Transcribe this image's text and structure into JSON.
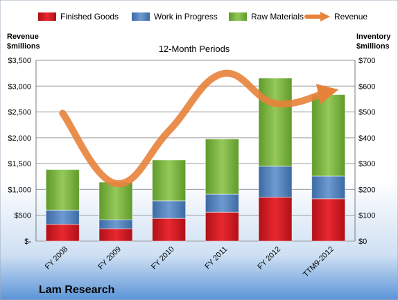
{
  "chart_data": {
    "type": "bar",
    "subtitle": "12-Month Periods",
    "company": "Lam Research",
    "left_axis_title": [
      "Revenue",
      "$millions"
    ],
    "right_axis_title": [
      "Inventory",
      "$millions"
    ],
    "categories": [
      "FY 2008",
      "FY 2009",
      "FY 2010",
      "FY 2011",
      "FY 2012",
      "TTM9-2012"
    ],
    "left_ticks": [
      "$-",
      "$500",
      "$1,000",
      "$1,500",
      "$2,000",
      "$2,500",
      "$3,000",
      "$3,500"
    ],
    "right_ticks": [
      "$0",
      "$100",
      "$200",
      "$300",
      "$400",
      "$500",
      "$600",
      "$700"
    ],
    "ylim_left": [
      0,
      3500
    ],
    "ylim_right": [
      0,
      700
    ],
    "stacked": true,
    "grid": true,
    "legend_position": "top",
    "series": [
      {
        "name": "Finished Goods",
        "axis": "right",
        "color": "#e0202a",
        "values": [
          65,
          48,
          88,
          112,
          170,
          164
        ]
      },
      {
        "name": "Work in Progress",
        "axis": "right",
        "color": "#4f81bd",
        "values": [
          55,
          35,
          68,
          70,
          120,
          88
        ]
      },
      {
        "name": "Raw Materials",
        "axis": "right",
        "color": "#7fba3c",
        "values": [
          157,
          145,
          158,
          213,
          341,
          315
        ]
      },
      {
        "name": "Revenue",
        "axis": "left",
        "type": "line",
        "color": "#e8823a",
        "values": [
          2475,
          1116,
          2134,
          3238,
          2665,
          2890
        ]
      }
    ]
  }
}
